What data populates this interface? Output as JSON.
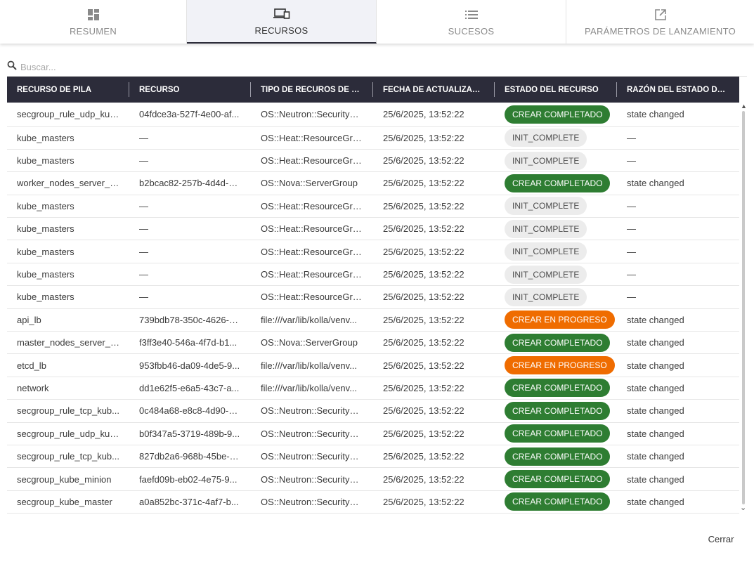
{
  "tabs": [
    {
      "label": "RESUMEN",
      "icon": "dashboard-icon",
      "active": false
    },
    {
      "label": "RECURSOS",
      "icon": "devices-icon",
      "active": true
    },
    {
      "label": "SUCESOS",
      "icon": "list-icon",
      "active": false
    },
    {
      "label": "PARÁMETROS DE LANZAMIENTO",
      "icon": "open-in-new-icon",
      "active": false
    }
  ],
  "search": {
    "placeholder": "Buscar..."
  },
  "table": {
    "columns": [
      "RECURSO DE PILA",
      "RECURSO",
      "TIPO DE RECUROS DE PILA",
      "FECHA DE ACTUALIZACIÓN",
      "ESTADO DEL RECURSO",
      "RAZÓN DEL ESTADO DE LA..."
    ],
    "rows": [
      {
        "stack_resource": "secgroup_rule_udp_kub...",
        "resource": "04fdce3a-527f-4e00-af...",
        "type": "OS::Neutron::SecurityGr...",
        "updated": "25/6/2025, 13:52:22",
        "status": "CREAR COMPLETADO",
        "status_kind": "completed",
        "reason": "state changed"
      },
      {
        "stack_resource": "kube_masters",
        "resource": "—",
        "type": "OS::Heat::ResourceGroup",
        "updated": "25/6/2025, 13:52:22",
        "status": "INIT_COMPLETE",
        "status_kind": "init",
        "reason": "—"
      },
      {
        "stack_resource": "kube_masters",
        "resource": "—",
        "type": "OS::Heat::ResourceGroup",
        "updated": "25/6/2025, 13:52:22",
        "status": "INIT_COMPLETE",
        "status_kind": "init",
        "reason": "—"
      },
      {
        "stack_resource": "worker_nodes_server_g...",
        "resource": "b2bcac82-257b-4d4d-b...",
        "type": "OS::Nova::ServerGroup",
        "updated": "25/6/2025, 13:52:22",
        "status": "CREAR COMPLETADO",
        "status_kind": "completed",
        "reason": "state changed"
      },
      {
        "stack_resource": "kube_masters",
        "resource": "—",
        "type": "OS::Heat::ResourceGroup",
        "updated": "25/6/2025, 13:52:22",
        "status": "INIT_COMPLETE",
        "status_kind": "init",
        "reason": "—"
      },
      {
        "stack_resource": "kube_masters",
        "resource": "—",
        "type": "OS::Heat::ResourceGroup",
        "updated": "25/6/2025, 13:52:22",
        "status": "INIT_COMPLETE",
        "status_kind": "init",
        "reason": "—"
      },
      {
        "stack_resource": "kube_masters",
        "resource": "—",
        "type": "OS::Heat::ResourceGroup",
        "updated": "25/6/2025, 13:52:22",
        "status": "INIT_COMPLETE",
        "status_kind": "init",
        "reason": "—"
      },
      {
        "stack_resource": "kube_masters",
        "resource": "—",
        "type": "OS::Heat::ResourceGroup",
        "updated": "25/6/2025, 13:52:22",
        "status": "INIT_COMPLETE",
        "status_kind": "init",
        "reason": "—"
      },
      {
        "stack_resource": "kube_masters",
        "resource": "—",
        "type": "OS::Heat::ResourceGroup",
        "updated": "25/6/2025, 13:52:22",
        "status": "INIT_COMPLETE",
        "status_kind": "init",
        "reason": "—"
      },
      {
        "stack_resource": "api_lb",
        "resource": "739bdb78-350c-4626-b...",
        "type": "file:///var/lib/kolla/venv...",
        "updated": "25/6/2025, 13:52:22",
        "status": "CREAR EN PROGRESO",
        "status_kind": "progress",
        "reason": "state changed"
      },
      {
        "stack_resource": "master_nodes_server_gr...",
        "resource": "f3ff3e40-546a-4f7d-b1...",
        "type": "OS::Nova::ServerGroup",
        "updated": "25/6/2025, 13:52:22",
        "status": "CREAR COMPLETADO",
        "status_kind": "completed",
        "reason": "state changed"
      },
      {
        "stack_resource": "etcd_lb",
        "resource": "953fbb46-da09-4de5-9...",
        "type": "file:///var/lib/kolla/venv...",
        "updated": "25/6/2025, 13:52:22",
        "status": "CREAR EN PROGRESO",
        "status_kind": "progress",
        "reason": "state changed"
      },
      {
        "stack_resource": "network",
        "resource": "dd1e62f5-e6a5-43c7-a...",
        "type": "file:///var/lib/kolla/venv...",
        "updated": "25/6/2025, 13:52:22",
        "status": "CREAR COMPLETADO",
        "status_kind": "completed",
        "reason": "state changed"
      },
      {
        "stack_resource": "secgroup_rule_tcp_kub...",
        "resource": "0c484a68-e8c8-4d90-8...",
        "type": "OS::Neutron::SecurityGr...",
        "updated": "25/6/2025, 13:52:22",
        "status": "CREAR COMPLETADO",
        "status_kind": "completed",
        "reason": "state changed"
      },
      {
        "stack_resource": "secgroup_rule_udp_kub...",
        "resource": "b0f347a5-3719-489b-9...",
        "type": "OS::Neutron::SecurityGr...",
        "updated": "25/6/2025, 13:52:22",
        "status": "CREAR COMPLETADO",
        "status_kind": "completed",
        "reason": "state changed"
      },
      {
        "stack_resource": "secgroup_rule_tcp_kub...",
        "resource": "827db2a6-968b-45be-8...",
        "type": "OS::Neutron::SecurityGr...",
        "updated": "25/6/2025, 13:52:22",
        "status": "CREAR COMPLETADO",
        "status_kind": "completed",
        "reason": "state changed"
      },
      {
        "stack_resource": "secgroup_kube_minion",
        "resource": "faefd09b-eb02-4e75-9...",
        "type": "OS::Neutron::SecurityGr...",
        "updated": "25/6/2025, 13:52:22",
        "status": "CREAR COMPLETADO",
        "status_kind": "completed",
        "reason": "state changed"
      },
      {
        "stack_resource": "secgroup_kube_master",
        "resource": "a0a852bc-371c-4af7-b...",
        "type": "OS::Neutron::SecurityGr...",
        "updated": "25/6/2025, 13:52:22",
        "status": "CREAR COMPLETADO",
        "status_kind": "completed",
        "reason": "state changed"
      }
    ]
  },
  "footer": {
    "close_label": "Cerrar"
  },
  "colors": {
    "completed": "#2e7d32",
    "progress": "#ef6c00",
    "init": "#ececec",
    "header": "#2c2c3a"
  }
}
